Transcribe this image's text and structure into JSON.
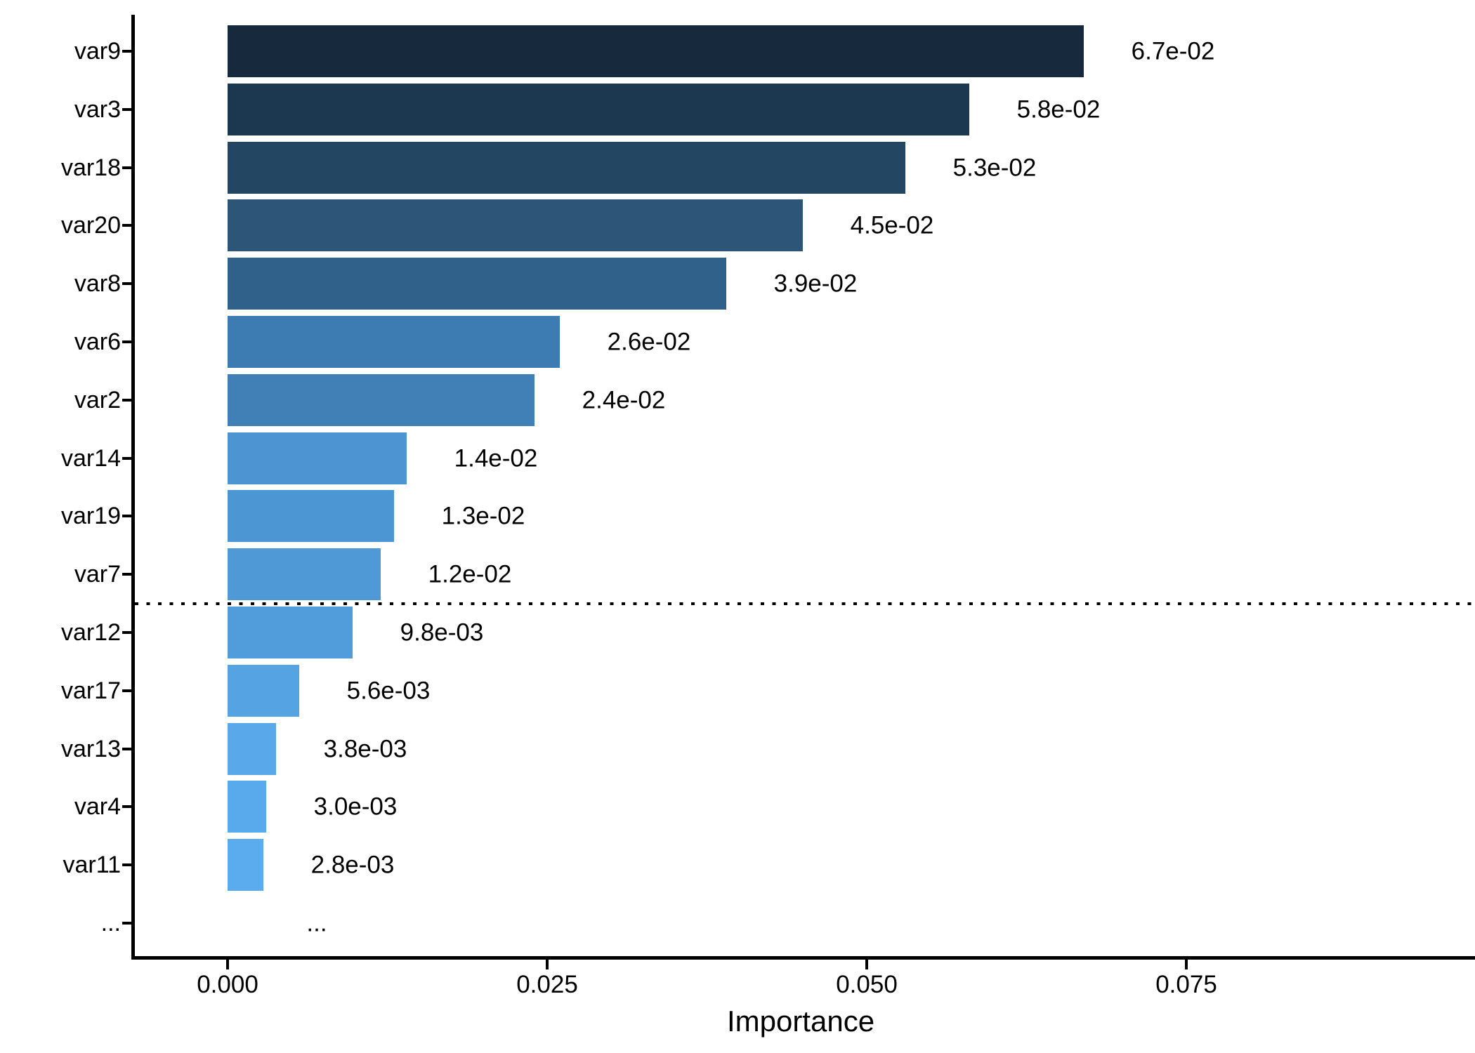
{
  "chart_data": {
    "type": "bar",
    "orientation": "horizontal",
    "xlabel": "Importance",
    "categories": [
      "var9",
      "var3",
      "var18",
      "var20",
      "var8",
      "var6",
      "var2",
      "var14",
      "var19",
      "var7",
      "var12",
      "var17",
      "var13",
      "var4",
      "var11",
      "..."
    ],
    "values": [
      0.067,
      0.058,
      0.053,
      0.045,
      0.039,
      0.026,
      0.024,
      0.014,
      0.013,
      0.012,
      0.0098,
      0.0056,
      0.0038,
      0.003,
      0.0028,
      null
    ],
    "value_labels": [
      "6.7e-02",
      "5.8e-02",
      "5.3e-02",
      "4.5e-02",
      "3.9e-02",
      "2.6e-02",
      "2.4e-02",
      "1.4e-02",
      "1.3e-02",
      "1.2e-02",
      "9.8e-03",
      "5.6e-03",
      "3.8e-03",
      "3.0e-03",
      "2.8e-03",
      "..."
    ],
    "bar_colors": [
      "#16293D",
      "#1C3850",
      "#234763",
      "#2C5578",
      "#30618A",
      "#3D7CB2",
      "#4080B7",
      "#4C94D2",
      "#4D96D4",
      "#4F99D7",
      "#519CDB",
      "#55A3E3",
      "#58A8EA",
      "#59AAEC",
      "#5AACEE",
      null
    ],
    "x_ticks": [
      {
        "value": 0.0,
        "label": "0.000"
      },
      {
        "value": 0.025,
        "label": "0.025"
      },
      {
        "value": 0.05,
        "label": "0.050"
      },
      {
        "value": 0.075,
        "label": "0.075"
      }
    ],
    "xlim": [
      0,
      0.0976
    ],
    "grid": false,
    "legend": "none",
    "threshold_line": {
      "style": "dotted",
      "color": "#000000",
      "between": [
        "var7",
        "var12"
      ]
    },
    "colors": {
      "axis": "#000000",
      "text": "#000000",
      "background": "#FFFFFF"
    }
  }
}
